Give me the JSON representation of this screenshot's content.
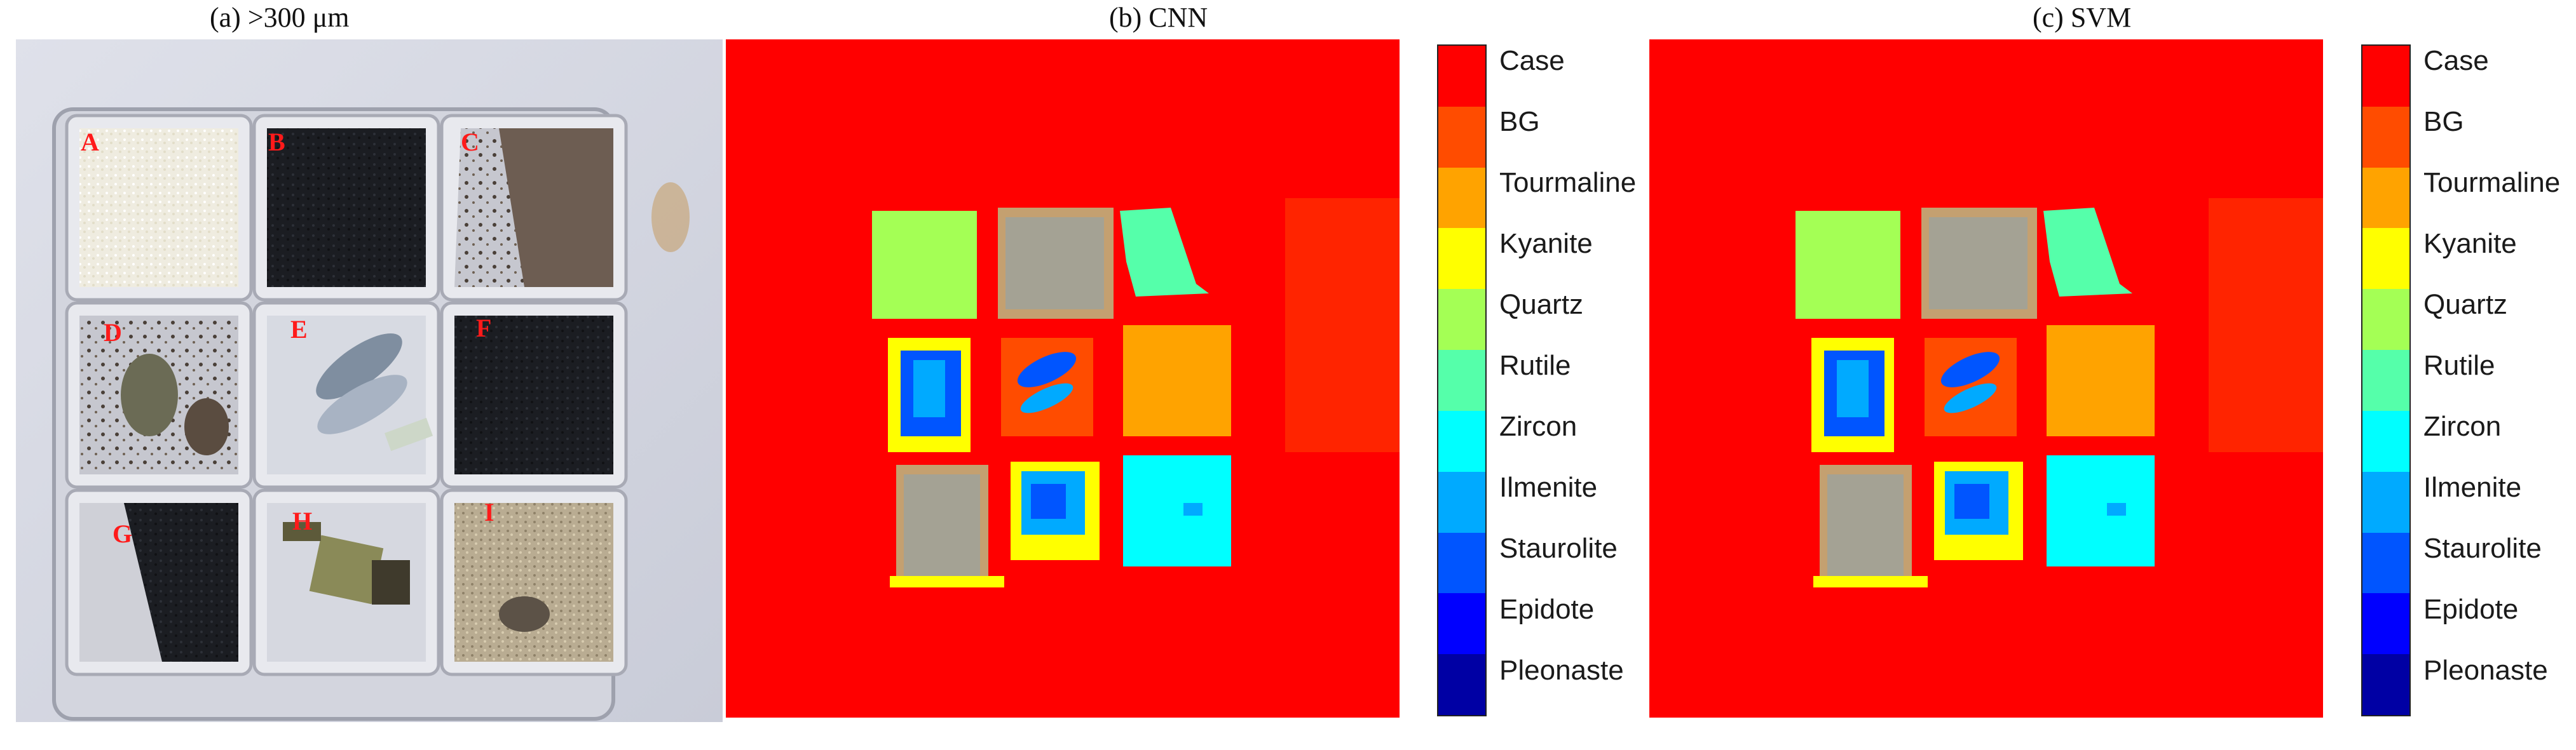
{
  "panels": {
    "photo_title": "(a) >300 μm",
    "cnn_title": "(b) CNN",
    "svm_title": "(c) SVM"
  },
  "well_labels": [
    "A",
    "B",
    "C",
    "D",
    "E",
    "F",
    "G",
    "H",
    "I"
  ],
  "classes": [
    {
      "name": "Case",
      "color": "#ff0000"
    },
    {
      "name": "BG",
      "color": "#ff4c00"
    },
    {
      "name": "Tourmaline",
      "color": "#ffa300"
    },
    {
      "name": "Kyanite",
      "color": "#ffff00"
    },
    {
      "name": "Quartz",
      "color": "#a4ff55"
    },
    {
      "name": "Rutile",
      "color": "#55ffaa"
    },
    {
      "name": "Zircon",
      "color": "#00ffff"
    },
    {
      "name": "Ilmenite",
      "color": "#00aaff"
    },
    {
      "name": "Staurolite",
      "color": "#0055ff"
    },
    {
      "name": "Epidote",
      "color": "#0000ff"
    },
    {
      "name": "Pleonaste",
      "color": "#0000a4"
    }
  ]
}
